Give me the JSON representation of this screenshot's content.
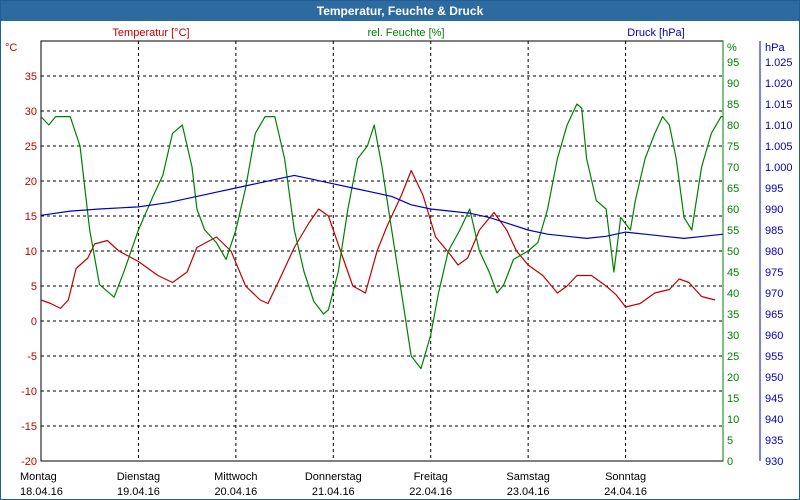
{
  "window": {
    "title": "Temperatur, Feuchte & Druck"
  },
  "colors": {
    "temp": "#c00000",
    "hum": "#008000",
    "press": "#0000c0",
    "titlebar": "#2d6aa0"
  },
  "chart_data": {
    "type": "line",
    "title": "Temperatur, Feuchte & Druck",
    "grid": true,
    "x": {
      "start_label_index": 0,
      "days": [
        {
          "day": "Montag",
          "date": "18.04.16"
        },
        {
          "day": "Dienstag",
          "date": "19.04.16"
        },
        {
          "day": "Mittwoch",
          "date": "20.04.16"
        },
        {
          "day": "Donnerstag",
          "date": "21.04.16"
        },
        {
          "day": "Freitag",
          "date": "22.04.16"
        },
        {
          "day": "Samstag",
          "date": "23.04.16"
        },
        {
          "day": "Sonntag",
          "date": "24.04.16"
        }
      ],
      "range_days": [
        0,
        7
      ]
    },
    "axes": {
      "temp": {
        "label": "Temperatur [°C]",
        "unit": "°C",
        "min": -20,
        "max": 40,
        "ticks": [
          "-20",
          "-15",
          "-10",
          "-5",
          "0",
          "5",
          "10",
          "15",
          "20",
          "25",
          "30",
          "35"
        ]
      },
      "hum": {
        "label": "rel. Feuchte [%]",
        "unit": "%",
        "min": 0,
        "max": 100,
        "ticks": [
          "0",
          "5",
          "10",
          "15",
          "20",
          "25",
          "30",
          "35",
          "40",
          "45",
          "50",
          "55",
          "60",
          "65",
          "70",
          "75",
          "80",
          "85",
          "90",
          "95"
        ]
      },
      "press": {
        "label": "Druck [hPa]",
        "unit": "hPa",
        "min": 930,
        "max": 1030,
        "ticks": [
          "930",
          "935",
          "940",
          "945",
          "950",
          "955",
          "960",
          "965",
          "970",
          "975",
          "980",
          "985",
          "990",
          "995",
          "1.000",
          "1.005",
          "1.010",
          "1.015",
          "1.020",
          "1.025"
        ]
      }
    },
    "series": [
      {
        "name": "Temperatur [°C]",
        "axis": "temp",
        "color": "#c00000",
        "points": [
          [
            0,
            3
          ],
          [
            0.1,
            2.5
          ],
          [
            0.2,
            1.8
          ],
          [
            0.28,
            3
          ],
          [
            0.36,
            7.5
          ],
          [
            0.48,
            9
          ],
          [
            0.55,
            11
          ],
          [
            0.68,
            11.5
          ],
          [
            0.8,
            10
          ],
          [
            1.0,
            8.5
          ],
          [
            1.2,
            6.5
          ],
          [
            1.35,
            5.5
          ],
          [
            1.5,
            7
          ],
          [
            1.6,
            10.5
          ],
          [
            1.8,
            12
          ],
          [
            1.95,
            10
          ],
          [
            2.1,
            5
          ],
          [
            2.25,
            3
          ],
          [
            2.33,
            2.5
          ],
          [
            2.45,
            6
          ],
          [
            2.6,
            10.5
          ],
          [
            2.75,
            14
          ],
          [
            2.85,
            16
          ],
          [
            2.95,
            15
          ],
          [
            3.1,
            9
          ],
          [
            3.2,
            5
          ],
          [
            3.33,
            4
          ],
          [
            3.45,
            10
          ],
          [
            3.55,
            13.5
          ],
          [
            3.7,
            18
          ],
          [
            3.8,
            21.5
          ],
          [
            3.92,
            18
          ],
          [
            4.05,
            12
          ],
          [
            4.2,
            9.5
          ],
          [
            4.28,
            8
          ],
          [
            4.38,
            9
          ],
          [
            4.5,
            13
          ],
          [
            4.65,
            15.5
          ],
          [
            4.78,
            13
          ],
          [
            4.88,
            10
          ],
          [
            5.0,
            8
          ],
          [
            5.15,
            6.5
          ],
          [
            5.3,
            4
          ],
          [
            5.4,
            5
          ],
          [
            5.5,
            6.5
          ],
          [
            5.65,
            6.5
          ],
          [
            5.8,
            5
          ],
          [
            5.9,
            3.8
          ],
          [
            6.0,
            2
          ],
          [
            6.15,
            2.5
          ],
          [
            6.3,
            4
          ],
          [
            6.45,
            4.5
          ],
          [
            6.55,
            6
          ],
          [
            6.65,
            5.5
          ],
          [
            6.78,
            3.5
          ],
          [
            6.92,
            3
          ]
        ]
      },
      {
        "name": "rel. Feuchte [%]",
        "axis": "hum",
        "color": "#008000",
        "points": [
          [
            0,
            82
          ],
          [
            0.08,
            80
          ],
          [
            0.15,
            82
          ],
          [
            0.3,
            82
          ],
          [
            0.4,
            75
          ],
          [
            0.5,
            55
          ],
          [
            0.6,
            42
          ],
          [
            0.75,
            39
          ],
          [
            0.85,
            45
          ],
          [
            1.0,
            55
          ],
          [
            1.15,
            63
          ],
          [
            1.25,
            68
          ],
          [
            1.35,
            78
          ],
          [
            1.45,
            80
          ],
          [
            1.55,
            70
          ],
          [
            1.6,
            60
          ],
          [
            1.68,
            55
          ],
          [
            1.8,
            52
          ],
          [
            1.9,
            48
          ],
          [
            2.0,
            55
          ],
          [
            2.1,
            65
          ],
          [
            2.2,
            78
          ],
          [
            2.3,
            82
          ],
          [
            2.4,
            82
          ],
          [
            2.5,
            72
          ],
          [
            2.6,
            55
          ],
          [
            2.7,
            45
          ],
          [
            2.8,
            38
          ],
          [
            2.9,
            35
          ],
          [
            2.95,
            36
          ],
          [
            3.05,
            45
          ],
          [
            3.15,
            60
          ],
          [
            3.25,
            72
          ],
          [
            3.35,
            75
          ],
          [
            3.42,
            80
          ],
          [
            3.5,
            70
          ],
          [
            3.6,
            55
          ],
          [
            3.7,
            40
          ],
          [
            3.8,
            25
          ],
          [
            3.9,
            22
          ],
          [
            4.0,
            30
          ],
          [
            4.08,
            40
          ],
          [
            4.18,
            50
          ],
          [
            4.3,
            55
          ],
          [
            4.4,
            60
          ],
          [
            4.5,
            50
          ],
          [
            4.6,
            45
          ],
          [
            4.68,
            40
          ],
          [
            4.75,
            42
          ],
          [
            4.85,
            48
          ],
          [
            5.0,
            50
          ],
          [
            5.1,
            52
          ],
          [
            5.2,
            60
          ],
          [
            5.3,
            72
          ],
          [
            5.4,
            80
          ],
          [
            5.5,
            85
          ],
          [
            5.55,
            84
          ],
          [
            5.6,
            72
          ],
          [
            5.7,
            62
          ],
          [
            5.8,
            60
          ],
          [
            5.88,
            45
          ],
          [
            5.95,
            58
          ],
          [
            6.05,
            55
          ],
          [
            6.1,
            62
          ],
          [
            6.2,
            72
          ],
          [
            6.3,
            78
          ],
          [
            6.38,
            82
          ],
          [
            6.45,
            80
          ],
          [
            6.52,
            72
          ],
          [
            6.6,
            58
          ],
          [
            6.68,
            55
          ],
          [
            6.78,
            70
          ],
          [
            6.88,
            78
          ],
          [
            6.98,
            82
          ],
          [
            7.0,
            82
          ]
        ]
      },
      {
        "name": "Druck [hPa]",
        "axis": "press",
        "color": "#0000c0",
        "points": [
          [
            0,
            988.5
          ],
          [
            0.3,
            989.5
          ],
          [
            0.6,
            990
          ],
          [
            1.0,
            990.5
          ],
          [
            1.3,
            991.5
          ],
          [
            1.6,
            993
          ],
          [
            1.8,
            994
          ],
          [
            2.0,
            995
          ],
          [
            2.2,
            996
          ],
          [
            2.4,
            997
          ],
          [
            2.6,
            998
          ],
          [
            2.8,
            997
          ],
          [
            3.0,
            996
          ],
          [
            3.2,
            995
          ],
          [
            3.4,
            994
          ],
          [
            3.6,
            993
          ],
          [
            3.8,
            991
          ],
          [
            4.0,
            990
          ],
          [
            4.2,
            989.5
          ],
          [
            4.4,
            989
          ],
          [
            4.6,
            988
          ],
          [
            4.8,
            986.5
          ],
          [
            5.0,
            985
          ],
          [
            5.2,
            984
          ],
          [
            5.4,
            983.5
          ],
          [
            5.6,
            983
          ],
          [
            5.8,
            983.5
          ],
          [
            6.0,
            984.5
          ],
          [
            6.2,
            984
          ],
          [
            6.4,
            983.5
          ],
          [
            6.6,
            983
          ],
          [
            6.8,
            983.5
          ],
          [
            7.0,
            984
          ]
        ]
      }
    ]
  }
}
